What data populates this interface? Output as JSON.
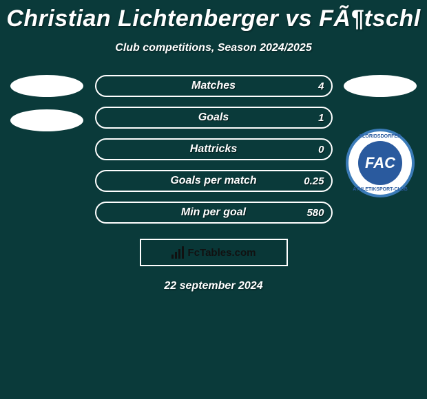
{
  "background_color": "#0a3a3a",
  "title": "Christian Lichtenberger vs FÃ¶tschl",
  "title_fontsize": 34,
  "subtitle": "Club competitions, Season 2024/2025",
  "subtitle_fontsize": 16,
  "date": "22 september 2024",
  "footer_brand": "FcTables.com",
  "left_side": {
    "ellipses": 2,
    "ellipse_color": "#ffffff"
  },
  "right_side": {
    "ellipses": 1,
    "ellipse_color": "#ffffff",
    "logo": {
      "text": "FAC",
      "inner_bg": "#2a5a9e",
      "outer_border": "#3b7bb8",
      "arc_top": "FLORIDSDORFER",
      "arc_bot": "ATHLETIKSPORT-CLUB"
    }
  },
  "bars": {
    "border_color": "#ffffff",
    "fill_color": "#155a5a",
    "text_color": "#ffffff",
    "rows": [
      {
        "label": "Matches",
        "left": "",
        "right": "4",
        "fill_pct": 0
      },
      {
        "label": "Goals",
        "left": "",
        "right": "1",
        "fill_pct": 0
      },
      {
        "label": "Hattricks",
        "left": "",
        "right": "0",
        "fill_pct": 0
      },
      {
        "label": "Goals per match",
        "left": "",
        "right": "0.25",
        "fill_pct": 0
      },
      {
        "label": "Min per goal",
        "left": "",
        "right": "580",
        "fill_pct": 0
      }
    ]
  }
}
